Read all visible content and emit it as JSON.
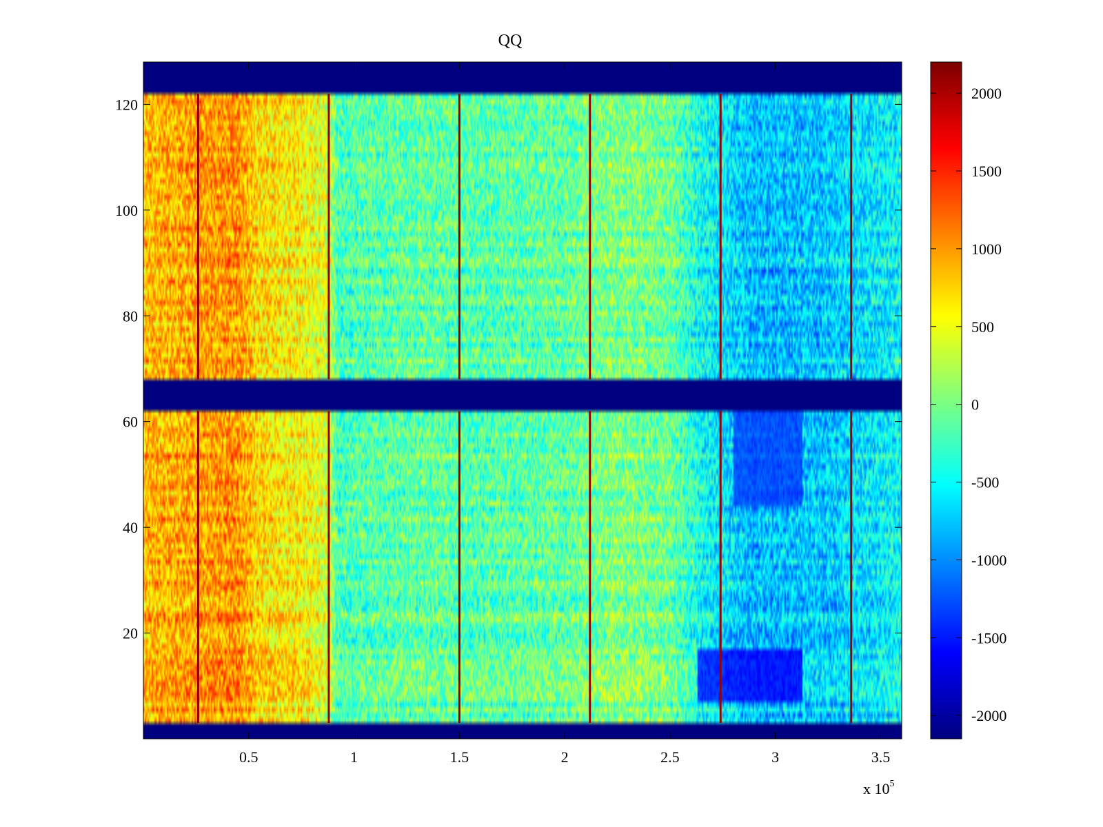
{
  "chart_data": {
    "type": "heatmap",
    "title": "QQ",
    "xlabel": "",
    "ylabel": "",
    "x_exponent_label": {
      "base": "x 10",
      "exponent": "5"
    },
    "xlim": [
      0,
      360000
    ],
    "ylim": [
      0,
      128
    ],
    "x_ticks": [
      {
        "value": 50000,
        "label": "0.5"
      },
      {
        "value": 100000,
        "label": "1"
      },
      {
        "value": 150000,
        "label": "1.5"
      },
      {
        "value": 200000,
        "label": "2"
      },
      {
        "value": 250000,
        "label": "2.5"
      },
      {
        "value": 300000,
        "label": "3"
      },
      {
        "value": 350000,
        "label": "3.5"
      }
    ],
    "y_ticks": [
      {
        "value": 20,
        "label": "20"
      },
      {
        "value": 40,
        "label": "40"
      },
      {
        "value": 60,
        "label": "60"
      },
      {
        "value": 80,
        "label": "80"
      },
      {
        "value": 100,
        "label": "100"
      },
      {
        "value": 120,
        "label": "120"
      }
    ],
    "colormap": "jet",
    "colorbar": {
      "range": [
        -2150,
        2200
      ],
      "ticks": [
        {
          "value": 2000,
          "label": "2000"
        },
        {
          "value": 1500,
          "label": "1500"
        },
        {
          "value": 1000,
          "label": "1000"
        },
        {
          "value": 500,
          "label": "500"
        },
        {
          "value": 0,
          "label": "0"
        },
        {
          "value": -500,
          "label": "-500"
        },
        {
          "value": -1000,
          "label": "-1000"
        },
        {
          "value": -1500,
          "label": "-1500"
        },
        {
          "value": -2000,
          "label": "-2000"
        }
      ]
    },
    "masked_row_bands": [
      {
        "y_from": 0,
        "y_to": 3,
        "value": -2150
      },
      {
        "y_from": 62,
        "y_to": 68,
        "value": -2150
      },
      {
        "y_from": 122,
        "y_to": 128,
        "value": -2150
      }
    ],
    "vertical_lines": [
      {
        "x": 26000,
        "value": 2100
      },
      {
        "x": 88000,
        "value": 2100
      },
      {
        "x": 150000,
        "value": 2100
      },
      {
        "x": 212000,
        "value": 2100
      },
      {
        "x": 274000,
        "value": 2100
      },
      {
        "x": 336000,
        "value": 2100
      }
    ],
    "column_profile": [
      {
        "x": 0,
        "value": 850
      },
      {
        "x": 20000,
        "value": 950
      },
      {
        "x": 45000,
        "value": 1050
      },
      {
        "x": 55000,
        "value": 700
      },
      {
        "x": 75000,
        "value": 600
      },
      {
        "x": 88000,
        "value": 400
      },
      {
        "x": 92000,
        "value": -200
      },
      {
        "x": 110000,
        "value": -150
      },
      {
        "x": 130000,
        "value": -100
      },
      {
        "x": 160000,
        "value": -150
      },
      {
        "x": 200000,
        "value": -100
      },
      {
        "x": 225000,
        "value": 50
      },
      {
        "x": 250000,
        "value": -50
      },
      {
        "x": 265000,
        "value": -450
      },
      {
        "x": 290000,
        "value": -800
      },
      {
        "x": 320000,
        "value": -750
      },
      {
        "x": 360000,
        "value": -500
      }
    ],
    "low_regions": [
      {
        "x_from": 263000,
        "x_to": 313000,
        "y_from": 7,
        "y_to": 17,
        "value": -1900
      },
      {
        "x_from": 280000,
        "x_to": 313000,
        "y_from": 44,
        "y_to": 62,
        "value": -1500
      }
    ]
  }
}
